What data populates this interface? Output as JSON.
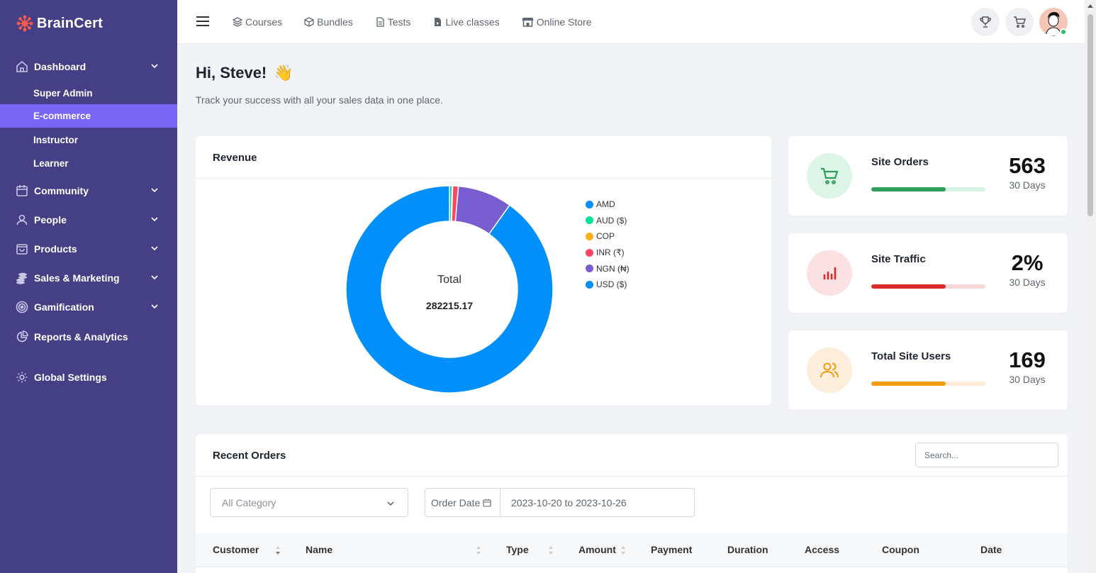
{
  "brand": {
    "name": "BrainCert"
  },
  "sidebar": {
    "items": [
      {
        "label": "Dashboard",
        "icon": "home-icon",
        "expandable": true
      },
      {
        "label": "Community",
        "icon": "calendar-icon",
        "expandable": true
      },
      {
        "label": "People",
        "icon": "user-icon",
        "expandable": true
      },
      {
        "label": "Products",
        "icon": "bag-icon",
        "expandable": true
      },
      {
        "label": "Sales & Marketing",
        "icon": "coins-icon",
        "expandable": true
      },
      {
        "label": "Gamification",
        "icon": "target-icon",
        "expandable": true
      },
      {
        "label": "Reports & Analytics",
        "icon": "pie-chart-icon",
        "expandable": false
      },
      {
        "label": "Global Settings",
        "icon": "gear-icon",
        "expandable": false
      }
    ],
    "dashboard_sub": [
      {
        "label": "Super Admin",
        "active": false
      },
      {
        "label": "E-commerce",
        "active": true
      },
      {
        "label": "Instructor",
        "active": false
      },
      {
        "label": "Learner",
        "active": false
      }
    ]
  },
  "topnav": {
    "items": [
      {
        "label": "Courses",
        "icon": "layers-icon"
      },
      {
        "label": "Bundles",
        "icon": "box-icon"
      },
      {
        "label": "Tests",
        "icon": "document-icon"
      },
      {
        "label": "Live classes",
        "icon": "file-video-icon"
      },
      {
        "label": "Online Store",
        "icon": "store-icon"
      }
    ]
  },
  "greeting": {
    "title": "Hi, Steve!",
    "emoji": "👋",
    "subtitle": "Track your success with all your sales data in one place."
  },
  "revenue": {
    "title": "Revenue",
    "center_label": "Total",
    "center_value": "282215.17"
  },
  "chart_data": {
    "type": "pie",
    "title": "Revenue",
    "categories": [
      "AMD",
      "AUD ($)",
      "COP",
      "INR (₹)",
      "NGN (₦)",
      "USD ($)"
    ],
    "values": [
      0,
      1200,
      200,
      2500,
      24000,
      254315.17
    ],
    "colors": [
      "#008ffb",
      "#00e396",
      "#feb019",
      "#ff4560",
      "#775dd0",
      "#008ffb"
    ],
    "legend": "right",
    "total": 282215.17
  },
  "stats": [
    {
      "title": "Site Orders",
      "value": "563",
      "period": "30 Days",
      "icon": "cart-icon",
      "color": "#2e9e5b",
      "bg": "#dcf5e7",
      "track": "#d5f3e4",
      "progress": 0.65
    },
    {
      "title": "Site Traffic",
      "value": "2%",
      "period": "30 Days",
      "icon": "bar-chart-icon",
      "color": "#d9292b",
      "bg": "#fbe1e1",
      "track": "#f8d9d9",
      "progress": 0.65
    },
    {
      "title": "Total Site Users",
      "value": "169",
      "period": "30 Days",
      "icon": "users-icon",
      "color": "#f39c12",
      "bg": "#fdeedb",
      "track": "#fcebd6",
      "progress": 0.65
    }
  ],
  "orders": {
    "title": "Recent Orders",
    "search_placeholder": "Search...",
    "category_placeholder": "All Category",
    "date_label": "Order Date",
    "date_range": "2023-10-20 to 2023-10-26",
    "columns": [
      "Customer",
      "Name",
      "Type",
      "Amount",
      "Payment",
      "Duration",
      "Access",
      "Coupon",
      "Date"
    ]
  }
}
